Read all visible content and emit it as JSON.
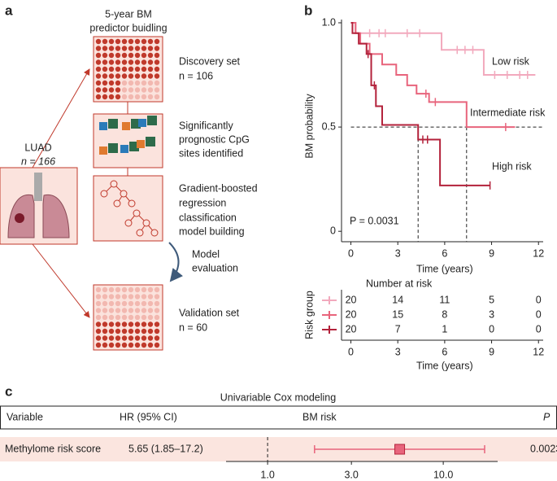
{
  "panel_a": {
    "letter": "a",
    "title": [
      "5-year BM",
      "predictor buidling"
    ],
    "source": {
      "name": "LUAD",
      "n": "n = 166"
    },
    "discovery": [
      "Discovery set",
      "n = 106"
    ],
    "features": [
      "Significantly",
      "prognostic CpG",
      "sites identified"
    ],
    "model": [
      "Gradient-boosted",
      "regression",
      "classification",
      "model building"
    ],
    "evaluation": [
      "Model",
      "evaluation"
    ],
    "validation": [
      "Validation set",
      "n = 60"
    ]
  },
  "chart_data": [
    {
      "type": "step",
      "panel": "b",
      "xlabel": "Time (years)",
      "ylabel": "BM probability",
      "xlim": [
        -0.6,
        12.3
      ],
      "ylim": [
        -0.05,
        1.0
      ],
      "xticks": [
        0,
        3,
        6,
        9,
        12
      ],
      "yticks": [
        {
          "value": 1,
          "label": "1.0"
        },
        {
          "value": 0.5,
          "label": "0.5"
        },
        0
      ],
      "annotation": "P = 0.0031",
      "threshold": 0.5,
      "median_times": [
        4.3,
        7.4
      ],
      "series": [
        {
          "name": "Low risk",
          "color": "#f2a9bd",
          "x": [
            0,
            0.3,
            5.8,
            8.5,
            11.8
          ],
          "values": [
            1,
            0.95,
            0.87,
            0.75,
            0.75
          ],
          "censored": [
            1.2,
            1.8,
            2.2,
            3.6,
            4.4,
            6.8,
            7.3,
            7.8,
            9.2,
            10.0,
            10.8,
            11.3
          ]
        },
        {
          "name": "Intermediate risk",
          "color": "#e8647c",
          "x": [
            0,
            0.3,
            0.6,
            1.2,
            2.0,
            2.9,
            3.6,
            4.2,
            5.0,
            7.4,
            10.5
          ],
          "values": [
            1,
            0.95,
            0.9,
            0.85,
            0.8,
            0.75,
            0.7,
            0.66,
            0.62,
            0.5,
            0.5
          ],
          "censored": [
            4.8,
            5.4,
            9.9
          ]
        },
        {
          "name": "High risk",
          "color": "#b3223b",
          "x": [
            0,
            0.1,
            0.5,
            1.0,
            1.3,
            1.6,
            2.0,
            4.3,
            5.7,
            8.9
          ],
          "values": [
            1,
            0.95,
            0.9,
            0.85,
            0.7,
            0.6,
            0.51,
            0.44,
            0.22,
            0.22
          ],
          "censored": [
            1.1,
            1.5,
            4.6,
            4.9,
            8.9
          ]
        }
      ],
      "risk_table": {
        "title": "Number at risk",
        "ylabel": "Risk group",
        "xlabel": "Time (years)",
        "rows": [
          [
            20,
            14,
            11,
            5,
            0
          ],
          [
            20,
            15,
            8,
            3,
            0
          ],
          [
            20,
            7,
            1,
            0,
            0
          ]
        ]
      }
    },
    {
      "type": "forest",
      "panel": "c",
      "title": "Univariable Cox modeling",
      "columns": [
        "Variable",
        "HR (95% CI)",
        "BM risk",
        "P"
      ],
      "rows": [
        {
          "variable": "Methylome risk score",
          "hr_text": "5.65 (1.85–17.2)",
          "p": "0.0023*",
          "hr": 5.65,
          "ci": [
            1.85,
            17.2
          ]
        }
      ],
      "log": true,
      "reference": 1,
      "color": "#e8647c",
      "xlim": [
        0.58,
        20.4
      ],
      "xticks": [
        {
          "value": 1,
          "label": "1.0"
        },
        {
          "value": 3,
          "label": "3.0"
        },
        {
          "value": 10,
          "label": "10.0"
        }
      ]
    }
  ]
}
